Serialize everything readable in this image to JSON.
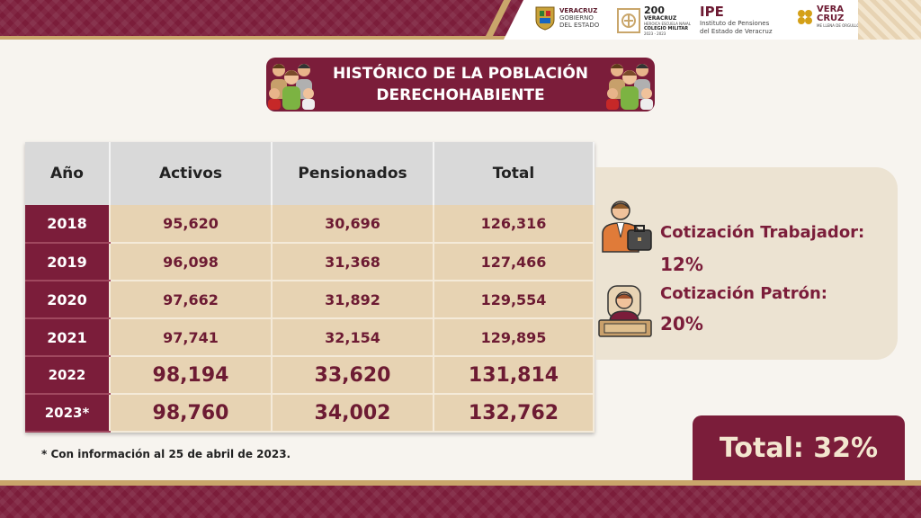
{
  "header": {
    "logos": {
      "veracruz_gobierno": [
        "VERACRUZ",
        "GOBIERNO",
        "DEL ESTADO"
      ],
      "bicentenario": [
        "200",
        "VERACRUZ",
        "HEROICA ESCUELA NAVAL",
        "COLEGIO MILITAR",
        "2023 - 2023"
      ],
      "ipe": {
        "acronym": "IPE",
        "line1": "Instituto de Pensiones",
        "line2": "del Estado de Veracruz"
      },
      "veracruz_brand": [
        "VERA",
        "CRUZ",
        "ME LLENA DE ORGULLO"
      ]
    }
  },
  "title": {
    "line1": "HISTÓRICO DE LA POBLACIÓN",
    "line2": "DERECHOHABIENTE"
  },
  "table": {
    "headers": [
      "Año",
      "Activos",
      "Pensionados",
      "Total"
    ],
    "rows": [
      {
        "year": "2018",
        "activos": "95,620",
        "pensionados": "30,696",
        "total": "126,316"
      },
      {
        "year": "2019",
        "activos": "96,098",
        "pensionados": "31,368",
        "total": "127,466"
      },
      {
        "year": "2020",
        "activos": "97,662",
        "pensionados": "31,892",
        "total": "129,554"
      },
      {
        "year": "2021",
        "activos": "97,741",
        "pensionados": "32,154",
        "total": "129,895"
      },
      {
        "year": "2022",
        "activos": "98,194",
        "pensionados": "33,620",
        "total": "131,814"
      },
      {
        "year": "2023*",
        "activos": "98,760",
        "pensionados": "34,002",
        "total": "132,762"
      }
    ]
  },
  "footnote": "* Con información al 25 de abril de 2023.",
  "contributions": {
    "worker_label": "Cotización Trabajador:",
    "worker_value": "12%",
    "employer_label": "Cotización Patrón:",
    "employer_value": "20%",
    "total": "Total: 32%"
  },
  "colors": {
    "primary": "#7b1d3a",
    "gold": "#c9a66b",
    "cell_bg": "#e7d3b3",
    "panel_bg": "#ece3d2"
  }
}
